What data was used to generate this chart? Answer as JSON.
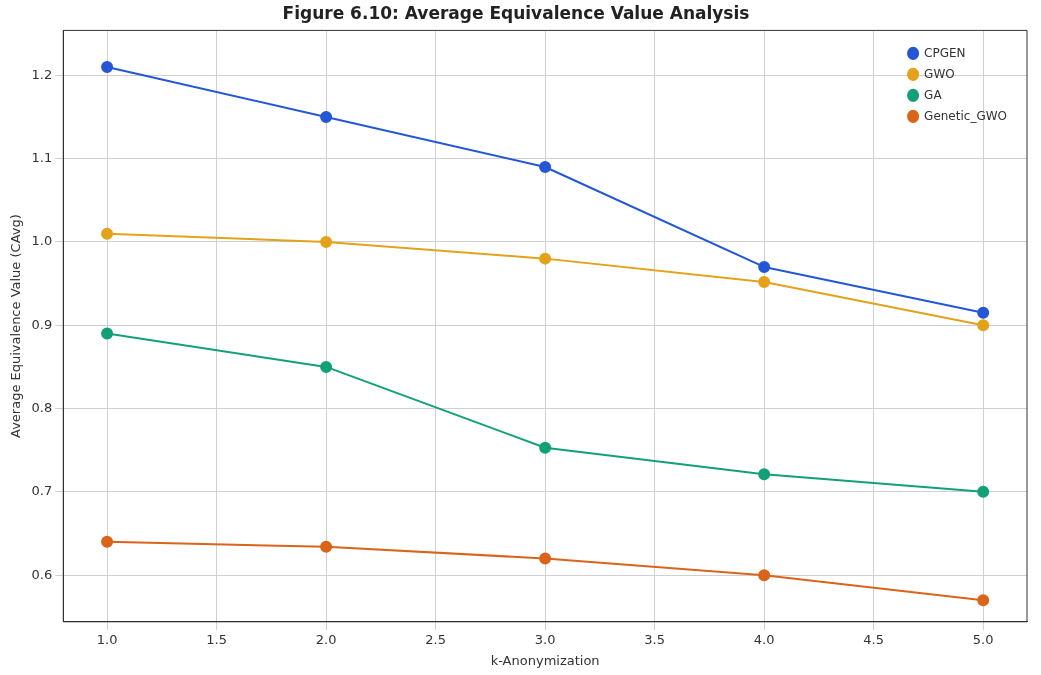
{
  "chart_data": {
    "type": "line",
    "title": "Figure 6.10: Average Equivalence Value Analysis",
    "xlabel": "k-Anonymization",
    "ylabel": "Average Equivalence Value (CAvg)",
    "x": [
      1,
      2,
      3,
      4,
      5
    ],
    "series": [
      {
        "name": "CPGEN",
        "color": "#2457d6",
        "values": [
          1.21,
          1.15,
          1.09,
          0.97,
          0.915
        ]
      },
      {
        "name": "GWO",
        "color": "#e3a21a",
        "values": [
          1.01,
          1.0,
          0.98,
          0.952,
          0.9
        ]
      },
      {
        "name": "GA",
        "color": "#13a078",
        "values": [
          0.89,
          0.85,
          0.753,
          0.721,
          0.7
        ]
      },
      {
        "name": "Genetic_GWO",
        "color": "#d9641a",
        "values": [
          0.64,
          0.634,
          0.62,
          0.6,
          0.57
        ]
      }
    ],
    "xlim": [
      0.8,
      5.2
    ],
    "xticks": [
      {
        "value": 1,
        "label": "1.0"
      },
      {
        "value": 1.5,
        "label": "1.5"
      },
      {
        "value": 2,
        "label": "2.0"
      },
      {
        "value": 2.5,
        "label": "2.5"
      },
      {
        "value": 3,
        "label": "3.0"
      },
      {
        "value": 3.5,
        "label": "3.5"
      },
      {
        "value": 4,
        "label": "4.0"
      },
      {
        "value": 4.5,
        "label": "4.5"
      },
      {
        "value": 5,
        "label": "5.0"
      }
    ],
    "ylim": [
      0.544,
      1.254
    ],
    "yticks": [
      {
        "value": 0.6,
        "label": "0.6"
      },
      {
        "value": 0.7,
        "label": "0.7"
      },
      {
        "value": 0.8,
        "label": "0.8"
      },
      {
        "value": 0.9,
        "label": "0.9"
      },
      {
        "value": 1,
        "label": "1.0"
      },
      {
        "value": 1.1,
        "label": "1.1"
      },
      {
        "value": 1.2,
        "label": "1.2"
      }
    ],
    "grid": true,
    "legend": "top right",
    "marker": "circle",
    "line_style": "solid"
  }
}
